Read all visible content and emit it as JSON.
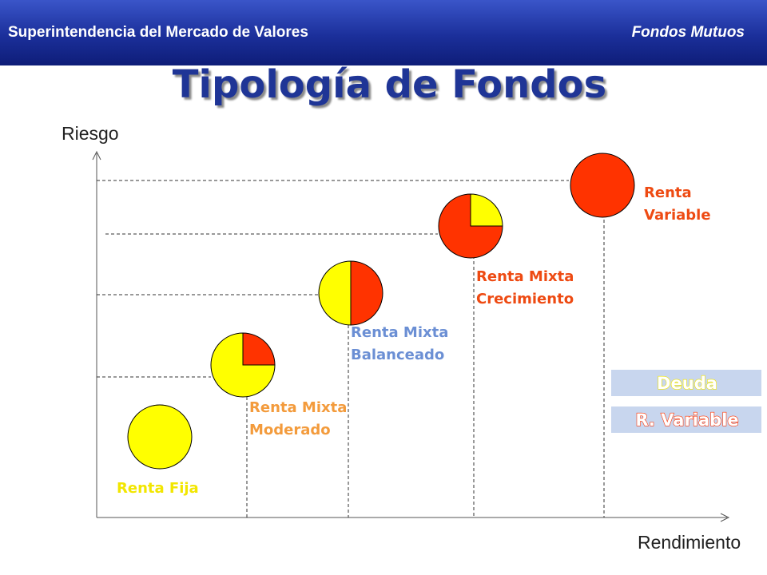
{
  "header": {
    "left_text": "Superintendencia del Mercado de Valores",
    "right_text": "Fondos Mutuos"
  },
  "title": "Tipología de Fondos",
  "axes": {
    "y_label": "Riesgo",
    "x_label": "Rendimiento"
  },
  "colors": {
    "deuda": "#ffff00",
    "renta_variable": "#ff3300",
    "header_blue": "#1b2f9a",
    "legend_box": "#c8d6ee"
  },
  "funds": [
    {
      "line1": "Renta Fija",
      "line2": "",
      "deuda_fraction": 1.0,
      "variable_fraction": 0.0,
      "label_color": "#f2e600"
    },
    {
      "line1": "Renta Mixta",
      "line2": "Moderado",
      "deuda_fraction": 0.75,
      "variable_fraction": 0.25,
      "label_color": "#f39b3c"
    },
    {
      "line1": "Renta Mixta",
      "line2": "Balanceado",
      "deuda_fraction": 0.5,
      "variable_fraction": 0.5,
      "label_color": "#6b8fd4"
    },
    {
      "line1": "Renta Mixta",
      "line2": "Crecimiento",
      "deuda_fraction": 0.25,
      "variable_fraction": 0.75,
      "label_color": "#ee4a12"
    },
    {
      "line1": "Renta",
      "line2": "Variable",
      "deuda_fraction": 0.0,
      "variable_fraction": 1.0,
      "label_color": "#ee4a12"
    }
  ],
  "legend": [
    {
      "label": "Deuda"
    },
    {
      "label": "R. Variable"
    }
  ]
}
